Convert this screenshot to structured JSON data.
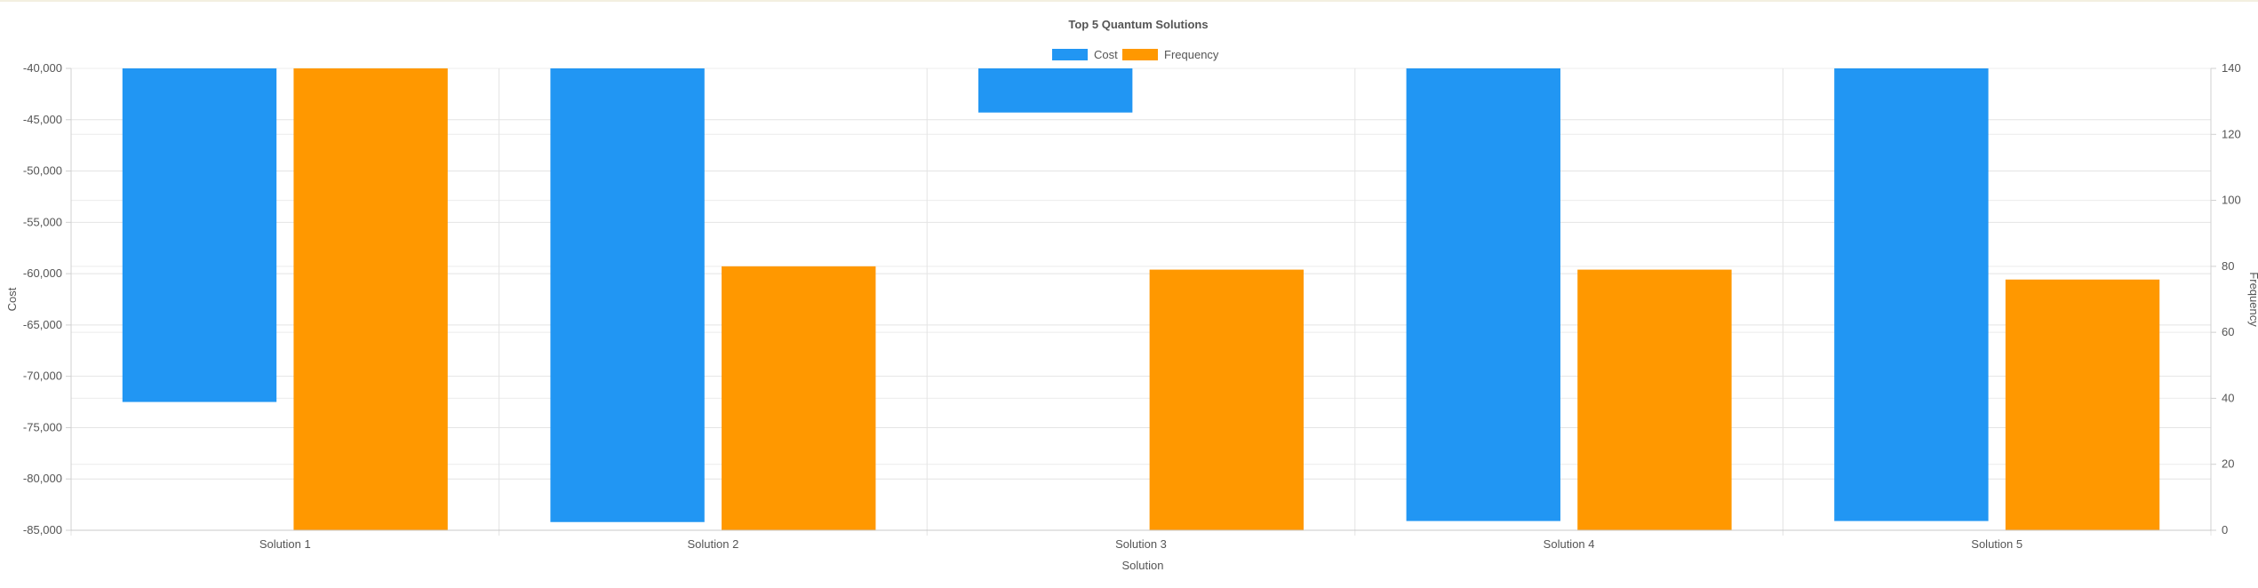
{
  "chart_data": {
    "type": "bar",
    "title": "Top 5 Quantum Solutions",
    "xlabel": "Solution",
    "ylabel": "Cost",
    "y2label": "Frequency",
    "categories": [
      "Solution 1",
      "Solution 2",
      "Solution 3",
      "Solution 4",
      "Solution 5"
    ],
    "series": [
      {
        "name": "Cost",
        "axis": "left",
        "color": "#2196F3",
        "values": [
          -72500,
          -84200,
          -44300,
          -84100,
          -84100
        ]
      },
      {
        "name": "Frequency",
        "axis": "right",
        "color": "#FF9800",
        "values": [
          140,
          80,
          79,
          79,
          76
        ]
      }
    ],
    "ylim": [
      -85000,
      -40000
    ],
    "y2lim": [
      0,
      140
    ],
    "yticks": [
      "-40,000",
      "-45,000",
      "-50,000",
      "-55,000",
      "-60,000",
      "-65,000",
      "-70,000",
      "-75,000",
      "-80,000",
      "-85,000"
    ],
    "y2ticks": [
      "140",
      "120",
      "100",
      "80",
      "60",
      "40",
      "20",
      "0"
    ],
    "grid": true,
    "legend_position": "top-center"
  }
}
